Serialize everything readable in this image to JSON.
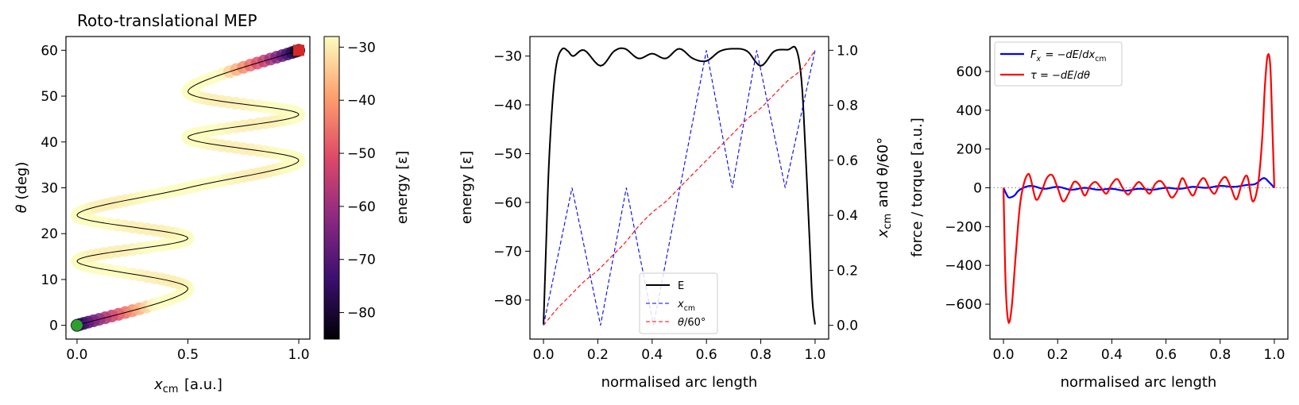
{
  "chart_data": [
    {
      "type": "scatter",
      "title": "Roto-translational MEP",
      "xlabel": "x_cm  [a.u.]",
      "ylabel": "θ  (deg)",
      "xlim": [
        -0.05,
        1.05
      ],
      "ylim": [
        -3,
        63
      ],
      "xticks": [
        0.0,
        0.5,
        1.0
      ],
      "yticks": [
        0,
        10,
        20,
        30,
        40,
        50,
        60
      ],
      "colorbar": {
        "label": "energy  [ε]",
        "range": [
          -85,
          -28
        ],
        "ticks": [
          -80,
          -70,
          -60,
          -50,
          -40,
          -30
        ],
        "colormap": "magma"
      },
      "path": {
        "x_waypoints": [
          0.0,
          0.5,
          0.0,
          0.5,
          0.0,
          0.5,
          1.0,
          0.5,
          1.0,
          0.5,
          1.0
        ],
        "theta_waypoints": [
          0,
          8,
          14,
          19,
          24,
          30,
          36,
          41,
          46,
          51,
          60
        ]
      },
      "start_marker": {
        "x": 0.0,
        "y": 0.0,
        "color": "#2ca02c"
      },
      "end_marker": {
        "x": 1.0,
        "y": 60.0,
        "color": "#d62728"
      }
    },
    {
      "type": "line",
      "xlabel": "normalised arc length",
      "ylabel": "energy  [ε]",
      "ylabel_right": "x_cm  and  θ/60°",
      "xlim": [
        -0.05,
        1.05
      ],
      "ylim": [
        -88,
        -26
      ],
      "ylim_right": [
        -0.05,
        1.05
      ],
      "xticks": [
        0.0,
        0.2,
        0.4,
        0.6,
        0.8,
        1.0
      ],
      "yticks": [
        -80,
        -70,
        -60,
        -50,
        -40,
        -30
      ],
      "yticks_right": [
        0.0,
        0.2,
        0.4,
        0.6,
        0.8,
        1.0
      ],
      "legend_position": "bottom-center",
      "series": [
        {
          "name": "E",
          "axis": "left",
          "color": "#000000",
          "style": "solid",
          "x": [
            0.0,
            0.01,
            0.02,
            0.035,
            0.05,
            0.07,
            0.09,
            0.11,
            0.15,
            0.21,
            0.26,
            0.3,
            0.35,
            0.4,
            0.45,
            0.5,
            0.55,
            0.6,
            0.65,
            0.7,
            0.75,
            0.8,
            0.85,
            0.9,
            0.93,
            0.95,
            0.965,
            0.98,
            0.99,
            1.0
          ],
          "y": [
            -85,
            -68,
            -52,
            -38,
            -31,
            -28.5,
            -29,
            -30,
            -28.8,
            -32,
            -29,
            -28.5,
            -30.5,
            -29.5,
            -30.5,
            -28.5,
            -30.5,
            -31,
            -29,
            -28.5,
            -29,
            -32,
            -29,
            -28.7,
            -28.5,
            -35,
            -50,
            -68,
            -80,
            -85
          ]
        },
        {
          "name": "x_cm",
          "axis": "right",
          "color": "#0000ff",
          "style": "dashed",
          "x": [
            0.0,
            0.105,
            0.21,
            0.305,
            0.405,
            0.6,
            0.695,
            0.785,
            0.89,
            1.0
          ],
          "y": [
            0.0,
            0.5,
            0.0,
            0.5,
            0.0,
            1.0,
            0.5,
            1.0,
            0.5,
            1.0
          ]
        },
        {
          "name": "θ/60°",
          "axis": "right",
          "color": "#ff0000",
          "style": "dashed",
          "x": [
            0.0,
            0.05,
            0.1,
            0.15,
            0.2,
            0.25,
            0.3,
            0.35,
            0.4,
            0.45,
            0.5,
            0.55,
            0.6,
            0.65,
            0.7,
            0.75,
            0.8,
            0.85,
            0.9,
            0.95,
            1.0
          ],
          "y": [
            0.0,
            0.06,
            0.11,
            0.16,
            0.2,
            0.25,
            0.3,
            0.36,
            0.41,
            0.45,
            0.5,
            0.55,
            0.6,
            0.65,
            0.7,
            0.75,
            0.79,
            0.84,
            0.89,
            0.93,
            1.0
          ]
        }
      ]
    },
    {
      "type": "line",
      "xlabel": "normalised arc length",
      "ylabel": "force / torque  [a.u.]",
      "xlim": [
        -0.05,
        1.05
      ],
      "ylim": [
        -780,
        780
      ],
      "xticks": [
        0.0,
        0.2,
        0.4,
        0.6,
        0.8,
        1.0
      ],
      "yticks": [
        -600,
        -400,
        -200,
        0,
        200,
        400,
        600
      ],
      "zero_line": true,
      "legend_position": "top-left",
      "series": [
        {
          "name": "F_x = −dE/dx_cm",
          "color": "#0000ff",
          "style": "solid",
          "x": [
            0.0,
            0.01,
            0.02,
            0.04,
            0.06,
            0.1,
            0.15,
            0.2,
            0.25,
            0.3,
            0.35,
            0.4,
            0.45,
            0.5,
            0.55,
            0.6,
            0.65,
            0.7,
            0.75,
            0.8,
            0.85,
            0.9,
            0.93,
            0.96,
            0.98,
            1.0
          ],
          "y": [
            0,
            -30,
            -50,
            -40,
            -10,
            10,
            -5,
            5,
            -10,
            0,
            -10,
            -5,
            -15,
            -5,
            -10,
            0,
            -5,
            5,
            0,
            10,
            5,
            15,
            20,
            50,
            30,
            0
          ]
        },
        {
          "name": "τ = −dE/dθ",
          "color": "#ff0000",
          "style": "solid",
          "x": [
            0.0,
            0.008,
            0.018,
            0.03,
            0.045,
            0.06,
            0.075,
            0.09,
            0.1,
            0.12,
            0.14,
            0.16,
            0.18,
            0.2,
            0.22,
            0.24,
            0.26,
            0.28,
            0.3,
            0.32,
            0.34,
            0.36,
            0.38,
            0.4,
            0.42,
            0.44,
            0.46,
            0.48,
            0.5,
            0.52,
            0.54,
            0.56,
            0.58,
            0.6,
            0.62,
            0.64,
            0.66,
            0.68,
            0.7,
            0.72,
            0.74,
            0.76,
            0.78,
            0.8,
            0.82,
            0.84,
            0.86,
            0.88,
            0.9,
            0.92,
            0.94,
            0.955,
            0.965,
            0.975,
            0.985,
            0.993,
            1.0
          ],
          "y": [
            0,
            -500,
            -690,
            -620,
            -350,
            -100,
            20,
            70,
            50,
            -60,
            -20,
            50,
            65,
            0,
            -70,
            -30,
            30,
            15,
            -40,
            10,
            30,
            0,
            -30,
            20,
            45,
            0,
            -35,
            0,
            30,
            0,
            -30,
            20,
            35,
            0,
            -50,
            -20,
            50,
            0,
            -40,
            20,
            50,
            0,
            -30,
            30,
            55,
            0,
            -60,
            20,
            60,
            -70,
            20,
            250,
            520,
            680,
            630,
            300,
            0
          ]
        }
      ]
    }
  ]
}
